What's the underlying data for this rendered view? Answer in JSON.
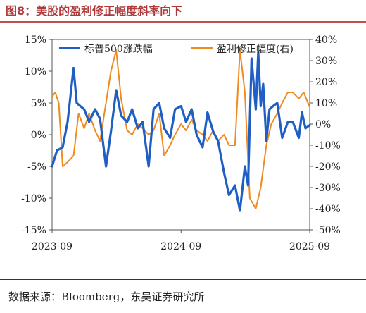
{
  "header": {
    "title": "图8：美股的盈利修正幅度斜率向下"
  },
  "footer": {
    "source": "数据来源：Bloomberg，东吴证券研究所"
  },
  "chart_data": {
    "type": "line",
    "x_ticks": [
      "2023-09",
      "2024-09",
      "2025-09"
    ],
    "x_range": [
      "2023-09",
      "2025-09"
    ],
    "y_left": {
      "range": [
        -15,
        15
      ],
      "ticks": [
        "-15%",
        "-10%",
        "-5%",
        "0%",
        "5%",
        "10%",
        "15%"
      ]
    },
    "y_right": {
      "range": [
        -50,
        40
      ],
      "ticks": [
        "-50%",
        "-40%",
        "-30%",
        "-20%",
        "-10%",
        "0%",
        "10%",
        "20%",
        "30%",
        "40%"
      ]
    },
    "legend_placement": "top",
    "colors": {
      "spx": "#1f5fc4",
      "rev": "#ee8a1f"
    },
    "series": [
      {
        "name": "标普500涨跌幅",
        "axis": "left",
        "color": "#1f5fc4",
        "x": [
          "2023-09-01",
          "2023-09-15",
          "2023-10-01",
          "2023-10-15",
          "2023-11-01",
          "2023-11-10",
          "2023-11-20",
          "2023-12-01",
          "2023-12-15",
          "2024-01-01",
          "2024-01-15",
          "2024-02-01",
          "2024-02-15",
          "2024-03-01",
          "2024-03-15",
          "2024-04-01",
          "2024-04-15",
          "2024-05-01",
          "2024-05-15",
          "2024-06-01",
          "2024-06-15",
          "2024-07-01",
          "2024-07-15",
          "2024-08-01",
          "2024-08-15",
          "2024-09-01",
          "2024-09-15",
          "2024-10-01",
          "2024-10-15",
          "2024-11-01",
          "2024-11-15",
          "2024-12-01",
          "2024-12-15",
          "2025-01-01",
          "2025-01-15",
          "2025-02-01",
          "2025-02-15",
          "2025-03-01",
          "2025-03-10",
          "2025-03-20",
          "2025-04-01",
          "2025-04-08",
          "2025-04-15",
          "2025-04-22",
          "2025-05-01",
          "2025-05-10",
          "2025-05-20",
          "2025-06-01",
          "2025-06-15",
          "2025-07-01",
          "2025-07-15",
          "2025-08-01",
          "2025-08-10",
          "2025-08-20",
          "2025-09-01"
        ],
        "values": [
          -5.0,
          -2.5,
          -2.0,
          2.0,
          10.5,
          5.0,
          4.5,
          4.0,
          2.0,
          4.0,
          2.5,
          -5.0,
          0.5,
          7.0,
          3.0,
          2.0,
          4.0,
          1.0,
          2.0,
          -5.0,
          4.0,
          5.0,
          1.0,
          -0.5,
          4.0,
          4.5,
          2.0,
          4.0,
          0.0,
          -2.0,
          3.5,
          0.5,
          -1.0,
          -6.0,
          -9.5,
          -8.0,
          -12.0,
          -5.0,
          -8.0,
          12.0,
          4.0,
          13.0,
          4.5,
          8.0,
          -1.0,
          4.0,
          4.5,
          5.0,
          -0.5,
          2.0,
          2.0,
          -0.5,
          3.5,
          1.0,
          1.5
        ]
      },
      {
        "name": "盈利修正幅度(右)",
        "axis": "right",
        "color": "#ee8a1f",
        "x": [
          "2023-09-01",
          "2023-09-10",
          "2023-09-20",
          "2023-10-01",
          "2023-10-15",
          "2023-11-01",
          "2023-11-15",
          "2023-12-01",
          "2023-12-15",
          "2024-01-01",
          "2024-01-15",
          "2024-02-01",
          "2024-02-15",
          "2024-03-01",
          "2024-03-15",
          "2024-04-01",
          "2024-04-15",
          "2024-05-01",
          "2024-05-15",
          "2024-06-01",
          "2024-06-15",
          "2024-07-01",
          "2024-07-15",
          "2024-08-01",
          "2024-08-15",
          "2024-09-01",
          "2024-09-15",
          "2024-10-01",
          "2024-10-15",
          "2024-11-01",
          "2024-11-15",
          "2024-12-01",
          "2024-12-15",
          "2025-01-01",
          "2025-01-15",
          "2025-02-01",
          "2025-02-15",
          "2025-03-01",
          "2025-03-15",
          "2025-04-01",
          "2025-04-15",
          "2025-05-01",
          "2025-05-15",
          "2025-06-01",
          "2025-06-15",
          "2025-07-01",
          "2025-07-15",
          "2025-08-01",
          "2025-08-15",
          "2025-09-01"
        ],
        "values": [
          13,
          15,
          10,
          -20,
          -18,
          -15,
          5,
          -2,
          5,
          -3,
          -8,
          10,
          25,
          35,
          12,
          -3,
          -5,
          0,
          -2,
          -5,
          -3,
          5,
          -15,
          -10,
          -5,
          0,
          -3,
          2,
          -3,
          -5,
          -8,
          -3,
          -8,
          -5,
          -10,
          -10,
          35,
          15,
          -35,
          -40,
          -30,
          -10,
          0,
          5,
          10,
          15,
          15,
          12,
          15,
          8
        ]
      }
    ]
  }
}
